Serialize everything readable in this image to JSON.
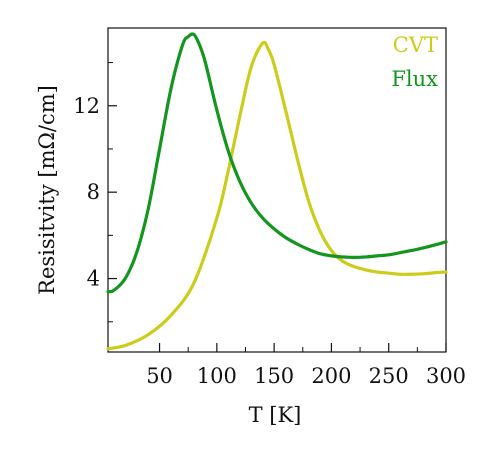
{
  "chart_data": {
    "type": "line",
    "xlabel": "T [K]",
    "ylabel": "Resisitvity [mΩ/cm]",
    "xlim": [
      5,
      300
    ],
    "ylim": [
      0.6,
      15.6
    ],
    "x_ticks": [
      50,
      100,
      150,
      200,
      250,
      300
    ],
    "x_tick_labels": [
      "50",
      "100",
      "150",
      "200",
      "250",
      "300"
    ],
    "x_minor_ticks": [
      75,
      125,
      175,
      225,
      275
    ],
    "y_ticks": [
      4,
      8,
      12
    ],
    "y_tick_labels": [
      "4",
      "8",
      "12"
    ],
    "y_minor_ticks": [
      2,
      6,
      10,
      14
    ],
    "grid": false,
    "legend_position": "top-right",
    "series": [
      {
        "name": "CVT",
        "color": "#cccc1a",
        "x": [
          5,
          20,
          40,
          60,
          80,
          100,
          110,
          120,
          130,
          140,
          145,
          150,
          160,
          170,
          180,
          190,
          200,
          210,
          220,
          230,
          240,
          250,
          260,
          270,
          280,
          290,
          300
        ],
        "y": [
          0.75,
          0.9,
          1.4,
          2.3,
          3.8,
          6.8,
          9.0,
          11.5,
          13.8,
          14.9,
          14.6,
          13.9,
          11.8,
          9.6,
          7.6,
          6.2,
          5.3,
          4.8,
          4.55,
          4.4,
          4.3,
          4.25,
          4.2,
          4.2,
          4.22,
          4.27,
          4.3
        ]
      },
      {
        "name": "Flux",
        "color": "#12961e",
        "x": [
          5,
          10,
          20,
          30,
          40,
          50,
          60,
          70,
          75,
          80,
          85,
          90,
          100,
          110,
          120,
          130,
          140,
          150,
          160,
          170,
          180,
          190,
          200,
          210,
          220,
          230,
          240,
          250,
          260,
          270,
          280,
          290,
          300
        ],
        "y": [
          3.4,
          3.45,
          4.0,
          5.2,
          7.2,
          10.0,
          12.8,
          14.8,
          15.2,
          15.3,
          14.8,
          14.0,
          11.8,
          9.9,
          8.5,
          7.5,
          6.8,
          6.3,
          5.9,
          5.6,
          5.35,
          5.15,
          5.05,
          5.0,
          4.98,
          5.0,
          5.05,
          5.1,
          5.2,
          5.3,
          5.42,
          5.55,
          5.7
        ]
      }
    ]
  }
}
